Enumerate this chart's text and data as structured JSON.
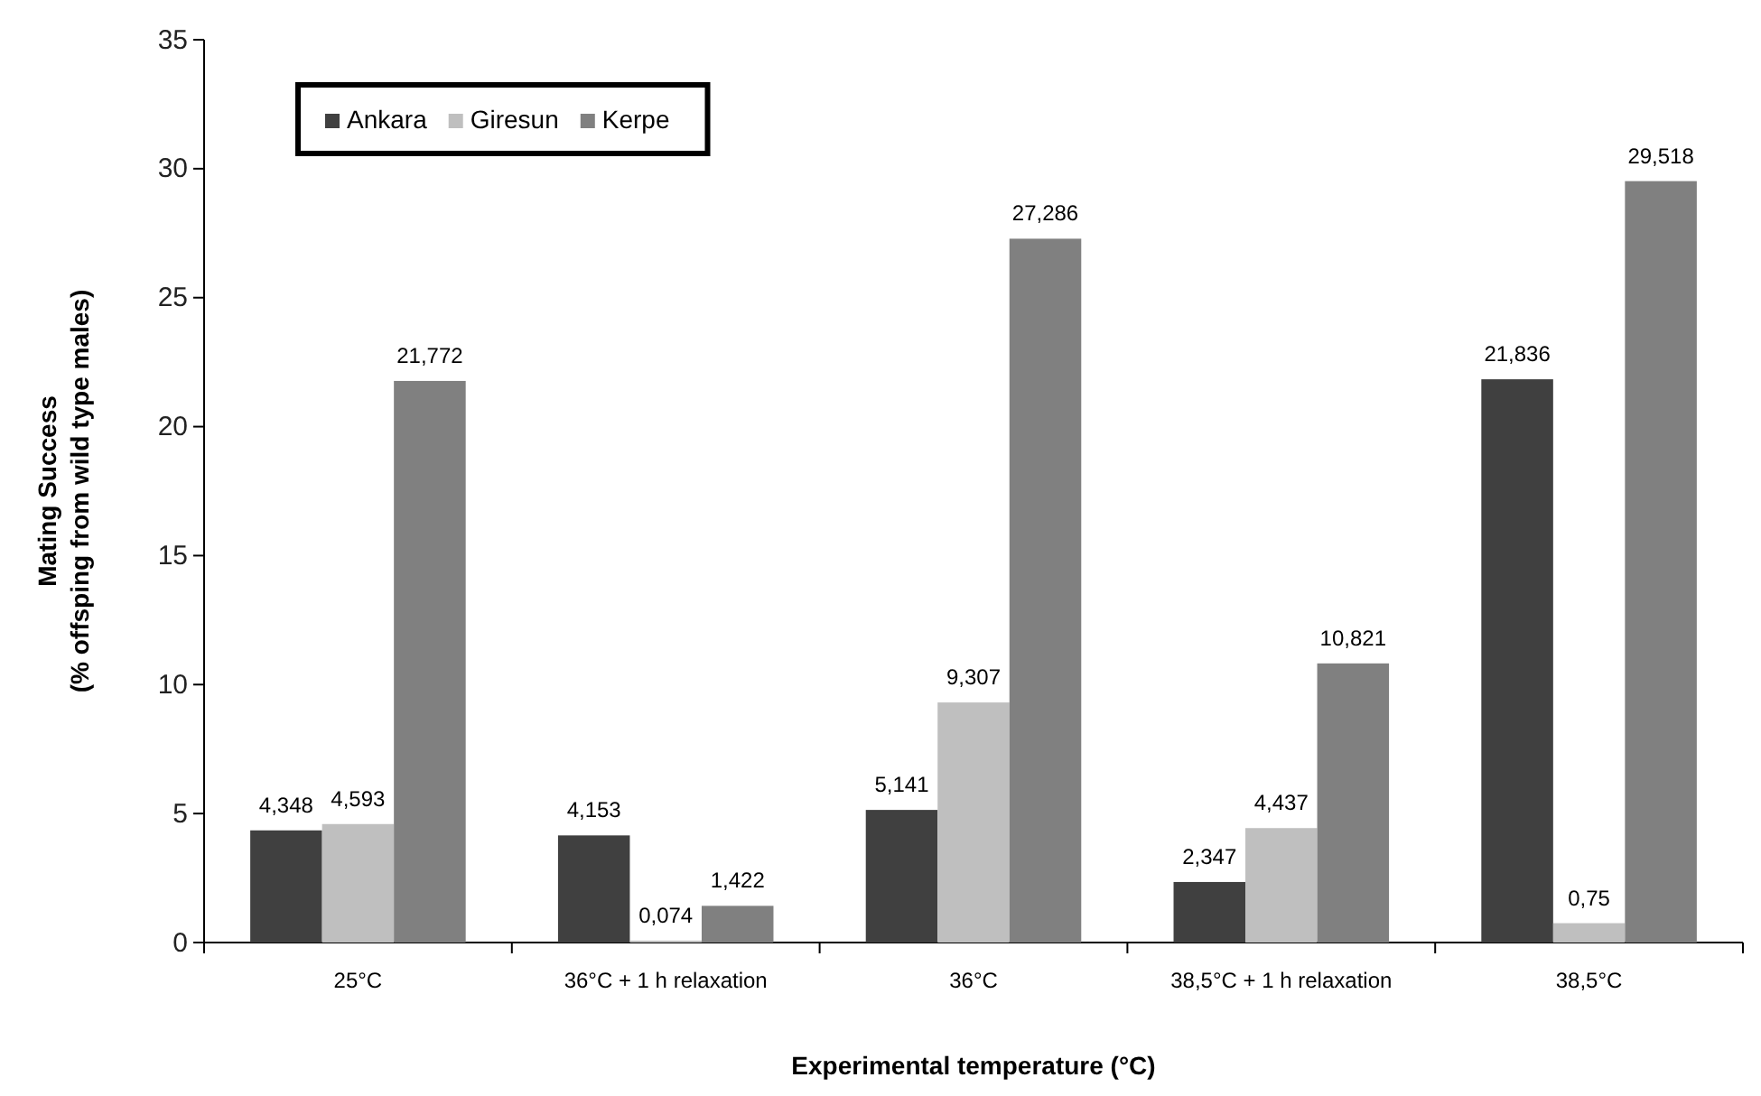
{
  "chart_data": {
    "type": "bar",
    "xlabel": "Experimental temperature (°C)",
    "ylabel": "Mating Success\n(% offsping from wild type males)",
    "categories": [
      "25°C",
      "36°C + 1 h relaxation",
      "36°C",
      "38,5°C + 1 h relaxation",
      "38,5°C"
    ],
    "series": [
      {
        "name": "Ankara",
        "color": "#404040",
        "values": [
          4.348,
          4.153,
          5.141,
          2.347,
          21.836
        ],
        "value_labels": [
          "4,348",
          "4,153",
          "5,141",
          "2,347",
          "21,836"
        ]
      },
      {
        "name": "Giresun",
        "color": "#bfbfbf",
        "values": [
          4.593,
          0.074,
          9.307,
          4.437,
          0.75
        ],
        "value_labels": [
          "4,593",
          "0,074",
          "9,307",
          "4,437",
          "0,75"
        ]
      },
      {
        "name": "Kerpe",
        "color": "#808080",
        "values": [
          21.772,
          1.422,
          27.286,
          10.821,
          29.518
        ],
        "value_labels": [
          "21,772",
          "1,422",
          "27,286",
          "10,821",
          "29,518"
        ]
      }
    ],
    "ylim": [
      0,
      35
    ],
    "yticks": [
      0,
      5,
      10,
      15,
      20,
      25,
      30,
      35
    ],
    "legend": "top left",
    "grid": false
  }
}
